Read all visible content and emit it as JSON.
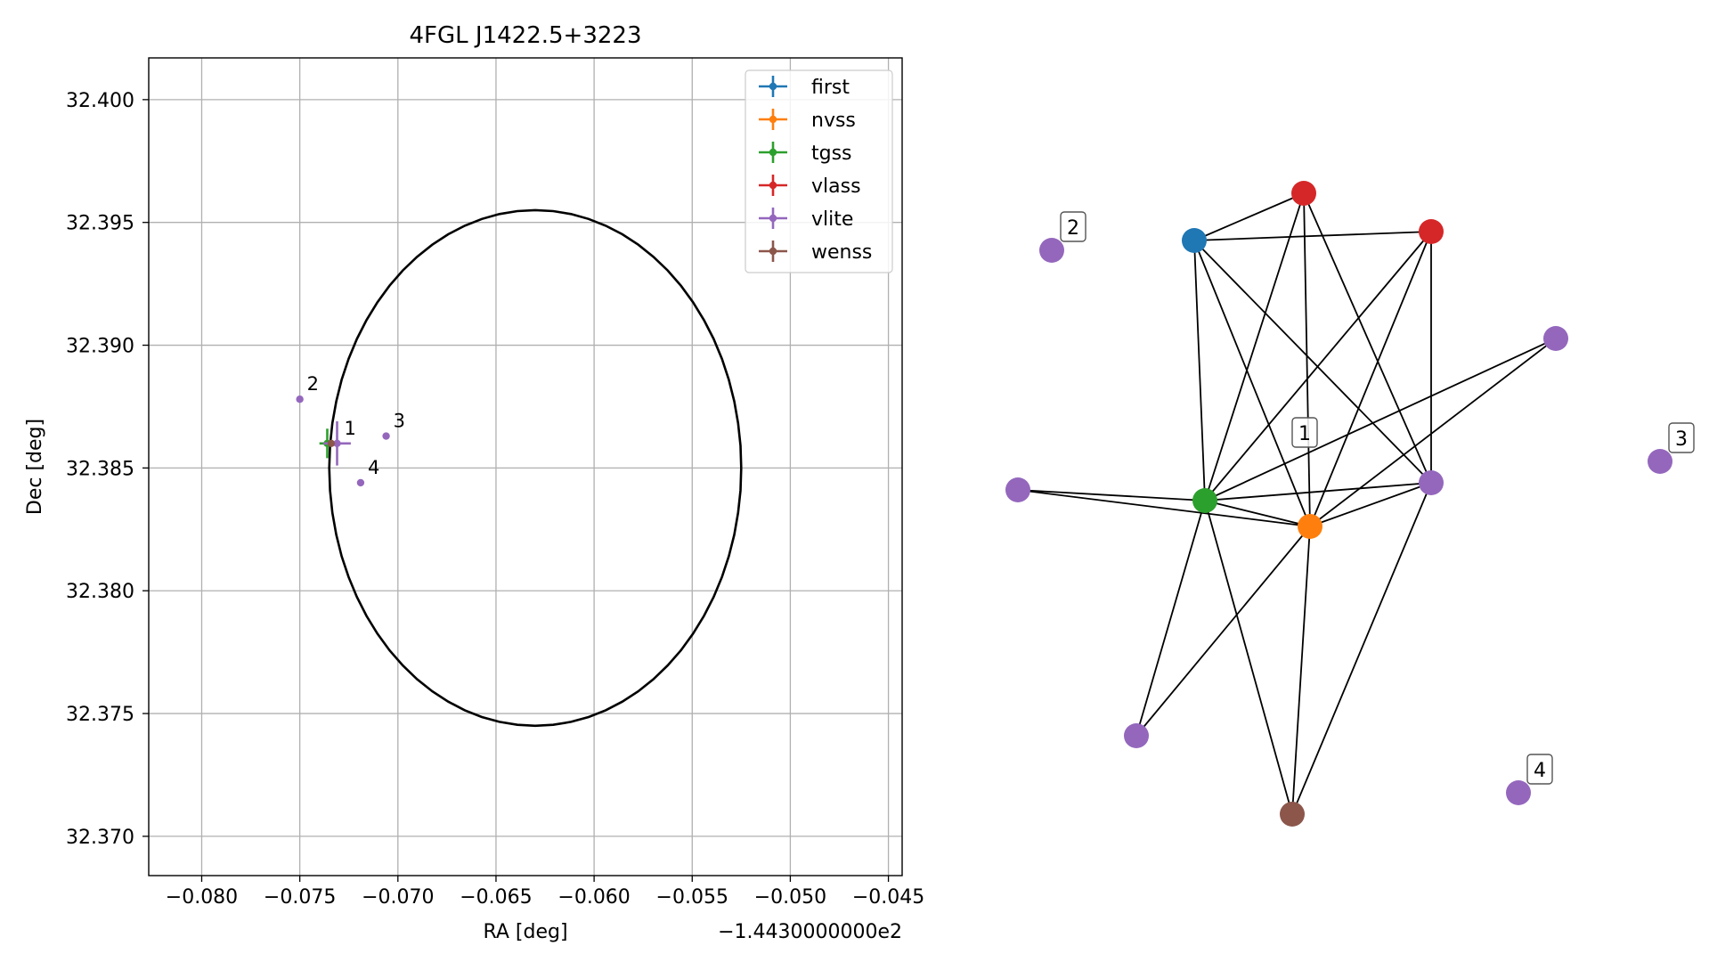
{
  "chart_data": [
    {
      "type": "scatter",
      "title": "4FGL J1422.5+3223",
      "xlabel": "RA [deg]",
      "ylabel": "Dec [deg]",
      "x_offset_label": "−1.4430000000e2",
      "xlim": [
        -0.0827,
        -0.0443
      ],
      "ylim": [
        32.3684,
        32.4017
      ],
      "x_ticks": [
        -0.08,
        -0.075,
        -0.07,
        -0.065,
        -0.06,
        -0.055,
        -0.05,
        -0.045
      ],
      "x_tick_labels": [
        "−0.080",
        "−0.075",
        "−0.070",
        "−0.065",
        "−0.060",
        "−0.055",
        "−0.050",
        "−0.045"
      ],
      "y_ticks": [
        32.37,
        32.375,
        32.38,
        32.385,
        32.39,
        32.395,
        32.4
      ],
      "y_tick_labels": [
        "32.370",
        "32.375",
        "32.380",
        "32.385",
        "32.390",
        "32.395",
        "32.400"
      ],
      "grid": true,
      "legend_position": "top-right",
      "series": [
        {
          "name": "first",
          "color": "#1f77b4",
          "points": []
        },
        {
          "name": "nvss",
          "color": "#ff7f0e",
          "points": []
        },
        {
          "name": "tgss",
          "color": "#2ca02c",
          "points": [
            {
              "x": -0.0736,
              "y": 32.386,
              "xerr": 0.0004,
              "yerr": 0.0006
            }
          ]
        },
        {
          "name": "vlass",
          "color": "#d62728",
          "points": []
        },
        {
          "name": "vlite",
          "color": "#9467bd",
          "points": [
            {
              "x": -0.0731,
              "y": 32.386,
              "xerr": 0.0007,
              "yerr": 0.0009
            },
            {
              "x": -0.075,
              "y": 32.3878,
              "xerr": 0,
              "yerr": 0
            },
            {
              "x": -0.0706,
              "y": 32.3863,
              "xerr": 0,
              "yerr": 0
            },
            {
              "x": -0.0719,
              "y": 32.3844,
              "xerr": 0,
              "yerr": 0
            }
          ]
        },
        {
          "name": "wenss",
          "color": "#8c564b",
          "points": [
            {
              "x": -0.0734,
              "y": 32.386,
              "xerr": 0,
              "yerr": 0
            }
          ]
        }
      ],
      "annotations": [
        {
          "text": "1",
          "x": -0.0731,
          "y": 32.386
        },
        {
          "text": "2",
          "x": -0.075,
          "y": 32.3878
        },
        {
          "text": "3",
          "x": -0.0706,
          "y": 32.3863
        },
        {
          "text": "4",
          "x": -0.0719,
          "y": 32.3844
        }
      ],
      "circle": {
        "center_x": -0.063,
        "center_y": 32.385,
        "radius": 0.0105
      }
    },
    {
      "type": "network",
      "node_colors": {
        "first": "#1f77b4",
        "nvss": "#ff7f0e",
        "tgss": "#2ca02c",
        "vlass": "#d62728",
        "vlite": "#9467bd",
        "wenss": "#8c564b"
      },
      "nodes": [
        {
          "id": "first1",
          "cat": "first",
          "label": ""
        },
        {
          "id": "vlass1",
          "cat": "vlass",
          "label": ""
        },
        {
          "id": "vlass2",
          "cat": "vlass",
          "label": ""
        },
        {
          "id": "tgss1",
          "cat": "tgss",
          "label": ""
        },
        {
          "id": "nvss1",
          "cat": "nvss",
          "label": ""
        },
        {
          "id": "wenss1",
          "cat": "wenss",
          "label": ""
        },
        {
          "id": "vliteA",
          "cat": "vlite",
          "label": ""
        },
        {
          "id": "vliteB",
          "cat": "vlite",
          "label": ""
        },
        {
          "id": "vliteC",
          "cat": "vlite",
          "label": ""
        },
        {
          "id": "vliteD",
          "cat": "vlite",
          "label": ""
        },
        {
          "id": "vlite1",
          "cat": "vlite",
          "label": "1"
        },
        {
          "id": "vlite2",
          "cat": "vlite",
          "label": "2"
        },
        {
          "id": "vlite3",
          "cat": "vlite",
          "label": "3"
        },
        {
          "id": "vlite4",
          "cat": "vlite",
          "label": "4"
        }
      ],
      "edges": [
        [
          "first1",
          "vlass1"
        ],
        [
          "first1",
          "vlass2"
        ],
        [
          "first1",
          "tgss1"
        ],
        [
          "first1",
          "nvss1"
        ],
        [
          "first1",
          "vliteD"
        ],
        [
          "vlass1",
          "tgss1"
        ],
        [
          "vlass1",
          "nvss1"
        ],
        [
          "vlass1",
          "vliteD"
        ],
        [
          "vlass2",
          "tgss1"
        ],
        [
          "vlass2",
          "nvss1"
        ],
        [
          "vlass2",
          "vliteD"
        ],
        [
          "vliteC",
          "tgss1"
        ],
        [
          "vliteC",
          "nvss1"
        ],
        [
          "vliteA",
          "tgss1"
        ],
        [
          "vliteA",
          "nvss1"
        ],
        [
          "tgss1",
          "nvss1"
        ],
        [
          "tgss1",
          "vliteD"
        ],
        [
          "tgss1",
          "vliteB"
        ],
        [
          "tgss1",
          "wenss1"
        ],
        [
          "nvss1",
          "vliteD"
        ],
        [
          "nvss1",
          "vliteB"
        ],
        [
          "nvss1",
          "wenss1"
        ],
        [
          "vliteD",
          "wenss1"
        ]
      ]
    }
  ]
}
